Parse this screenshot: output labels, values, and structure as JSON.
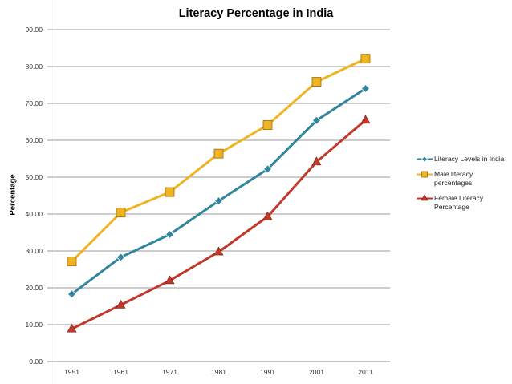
{
  "chart_data": {
    "type": "line",
    "title": "Literacy Percentage in India",
    "xlabel": "",
    "ylabel": "Percentage",
    "categories": [
      "1951",
      "1961",
      "1971",
      "1981",
      "1991",
      "2001",
      "2011"
    ],
    "ylim": [
      0,
      90
    ],
    "yticks": [
      "0.00",
      "10.00",
      "20.00",
      "30.00",
      "40.00",
      "50.00",
      "60.00",
      "70.00",
      "80.00",
      "90.00"
    ],
    "grid": true,
    "legend_position": "right",
    "series": [
      {
        "name": "Literacy Levels in India",
        "marker": "diamond",
        "color": "#31859c",
        "values": [
          18.3,
          28.3,
          34.45,
          43.57,
          52.21,
          65.38,
          74.04
        ]
      },
      {
        "name": "Male literacy percentages",
        "marker": "square",
        "color": "#f0b323",
        "values": [
          27.16,
          40.4,
          45.96,
          56.38,
          64.13,
          75.85,
          82.14
        ]
      },
      {
        "name": "Female Literacy Percentage",
        "marker": "triangle",
        "color": "#c0392b",
        "values": [
          8.86,
          15.35,
          21.97,
          29.76,
          39.29,
          54.16,
          65.46
        ]
      }
    ]
  }
}
